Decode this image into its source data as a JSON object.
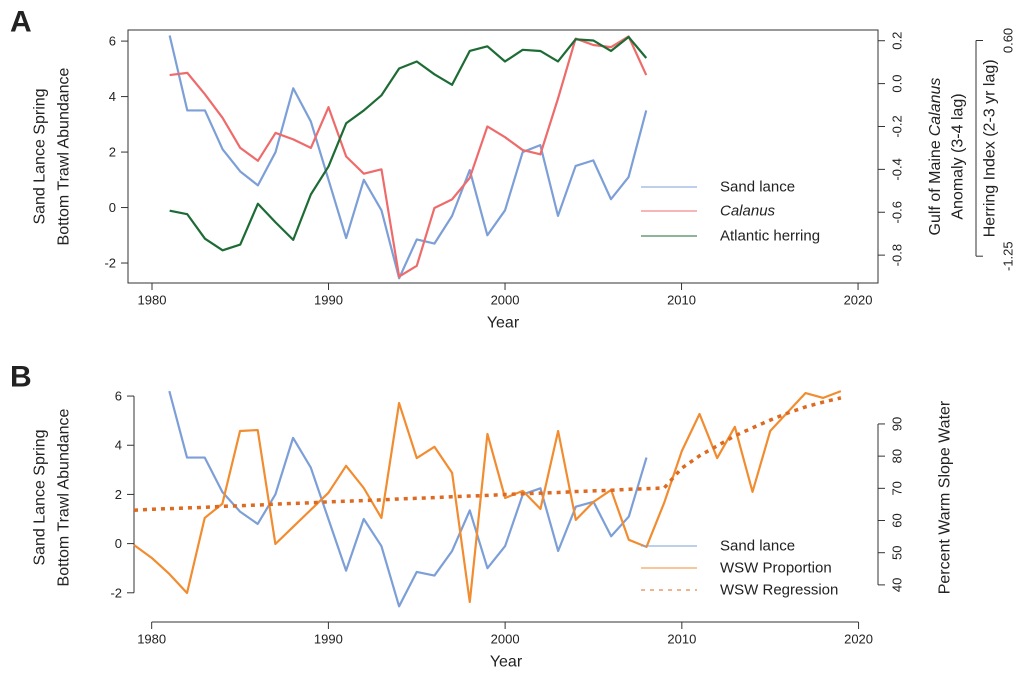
{
  "chart_data": [
    {
      "type": "line",
      "panel_label": "A",
      "x": [
        1981,
        1982,
        1983,
        1984,
        1985,
        1986,
        1987,
        1988,
        1989,
        1990,
        1991,
        1992,
        1993,
        1994,
        1995,
        1996,
        1997,
        1998,
        1999,
        2000,
        2001,
        2002,
        2003,
        2004,
        2005,
        2006,
        2007,
        2008
      ],
      "xlim": [
        1978.64,
        2021.13
      ],
      "xticks": [
        1980,
        1990,
        2000,
        2010,
        2020
      ],
      "xlabel": "Year",
      "ylabel": [
        "Sand Lance Spring",
        "Bottom Trawl Abundance"
      ],
      "ylim": [
        -2.72,
        6.4
      ],
      "yticks": [
        -2,
        0,
        2,
        4,
        6
      ],
      "y2label": [
        "Gulf of Maine",
        "Calanus",
        "Anomaly (3-4 lag)"
      ],
      "y2lim": [
        -0.93,
        0.25
      ],
      "y2ticks": [
        -0.8,
        -0.6,
        -0.4,
        -0.2,
        {
          "value": 0,
          "label": "0.0"
        },
        0.2
      ],
      "y3label": "Herring Index (2-3 yr lag)",
      "y3lim": [
        -1.48,
        0.69
      ],
      "y3ticks": [
        -1.25,
        {
          "value": 0.6,
          "label": "0.60"
        }
      ],
      "frame": true,
      "legend": "lower right",
      "series": [
        {
          "name": "Sand lance",
          "color": "#7d9fd8",
          "values": [
            6.2,
            3.5,
            3.5,
            2.1,
            1.3,
            0.8,
            2.0,
            4.3,
            3.1,
            1.0,
            -1.1,
            1.0,
            -0.1,
            -2.55,
            -1.15,
            -1.3,
            -0.3,
            1.35,
            -1.0,
            -0.1,
            2.0,
            2.25,
            -0.3,
            1.5,
            1.7,
            0.3,
            1.1,
            3.5
          ]
        },
        {
          "name": "Calanus",
          "color": "#ef6b6b",
          "style": "italic",
          "axis": "y2",
          "values": [
            0.04,
            0.05,
            -0.05,
            -0.16,
            -0.3,
            -0.36,
            -0.23,
            -0.26,
            -0.3,
            -0.11,
            -0.34,
            -0.42,
            -0.4,
            -0.9,
            -0.85,
            -0.58,
            -0.54,
            -0.44,
            -0.2,
            -0.25,
            -0.31,
            -0.33,
            -0.07,
            0.21,
            0.18,
            0.17,
            0.22,
            0.04
          ]
        },
        {
          "name": "Atlantic herring",
          "color": "#1d6b35",
          "axis": "y3",
          "values": [
            -0.86,
            -0.89,
            -1.1,
            -1.2,
            -1.15,
            -0.8,
            -0.96,
            -1.11,
            -0.72,
            -0.48,
            -0.11,
            0,
            0.13,
            0.36,
            0.42,
            0.31,
            0.22,
            0.51,
            0.55,
            0.42,
            0.52,
            0.51,
            0.42,
            0.61,
            0.6,
            0.51,
            0.63,
            0.45
          ]
        }
      ]
    },
    {
      "type": "line",
      "panel_label": "B",
      "x": [
        1979,
        1980,
        1981,
        1982,
        1983,
        1984,
        1985,
        1986,
        1987,
        1988,
        1989,
        1990,
        1991,
        1992,
        1993,
        1994,
        1995,
        1996,
        1997,
        1998,
        1999,
        2000,
        2001,
        2002,
        2003,
        2004,
        2005,
        2006,
        2007,
        2008,
        2009,
        2010,
        2011,
        2012,
        2013,
        2014,
        2015,
        2016,
        2017,
        2018,
        2019
      ],
      "xlim": [
        1979,
        2021.1
      ],
      "xticks": [
        1980,
        1990,
        2000,
        2010,
        2020
      ],
      "xlabel": "Year",
      "ylabel": [
        "Sand Lance Spring",
        "Bottom Trawl Abundance"
      ],
      "ylim": [
        -2.7,
        6.45
      ],
      "yticks": [
        -2,
        0,
        2,
        4,
        6
      ],
      "y2label": [
        "Percent Warm Slope Water"
      ],
      "y2lim": [
        32.2,
        102.1
      ],
      "y2ticks": [
        40,
        50,
        60,
        70,
        80,
        90
      ],
      "frame": false,
      "legend": "lower right",
      "series": [
        {
          "name": "Sand lance",
          "color": "#7d9fd8",
          "values": [
            null,
            null,
            6.2,
            3.5,
            3.5,
            2.1,
            1.3,
            0.8,
            2.0,
            4.3,
            3.1,
            1.0,
            -1.1,
            1.0,
            -0.1,
            -2.55,
            -1.15,
            -1.3,
            -0.3,
            1.35,
            -1.0,
            -0.1,
            2.0,
            2.25,
            -0.3,
            1.5,
            1.7,
            0.3,
            1.1,
            3.5,
            null,
            null,
            null,
            null,
            null,
            null,
            null,
            null,
            null,
            null,
            null
          ]
        },
        {
          "name": "WSW Proportion",
          "color": "#f28c30",
          "axis": "y2",
          "values": [
            52.4,
            48.4,
            43.4,
            37.5,
            60.8,
            65.2,
            87.8,
            88.1,
            52.7,
            58.0,
            63.3,
            68.6,
            77.0,
            70.1,
            60.8,
            96.5,
            79.4,
            82.9,
            74.8,
            34.7,
            86.9,
            67.0,
            69.2,
            63.6,
            87.8,
            60.2,
            65.8,
            69.5,
            54.0,
            51.8,
            65.5,
            81.6,
            93.1,
            79.4,
            89.1,
            68.9,
            87.8,
            93.7,
            99.6,
            98.1,
            100.2
          ]
        },
        {
          "name": "WSW Regression",
          "color": "#dd6a20",
          "dashed": true,
          "axis": "y2",
          "values": [
            63.2,
            63.5,
            63.7,
            63.9,
            64.1,
            64.4,
            64.6,
            64.8,
            65.1,
            65.3,
            65.5,
            65.8,
            66.0,
            66.2,
            66.4,
            66.7,
            66.9,
            67.1,
            67.4,
            67.6,
            67.8,
            68.1,
            68.3,
            68.5,
            68.7,
            69.0,
            69.2,
            69.4,
            69.7,
            69.9,
            70.1,
            76.3,
            80.1,
            83.2,
            86.3,
            88.8,
            91.2,
            93.4,
            95.3,
            96.8,
            98.1
          ]
        }
      ]
    }
  ]
}
